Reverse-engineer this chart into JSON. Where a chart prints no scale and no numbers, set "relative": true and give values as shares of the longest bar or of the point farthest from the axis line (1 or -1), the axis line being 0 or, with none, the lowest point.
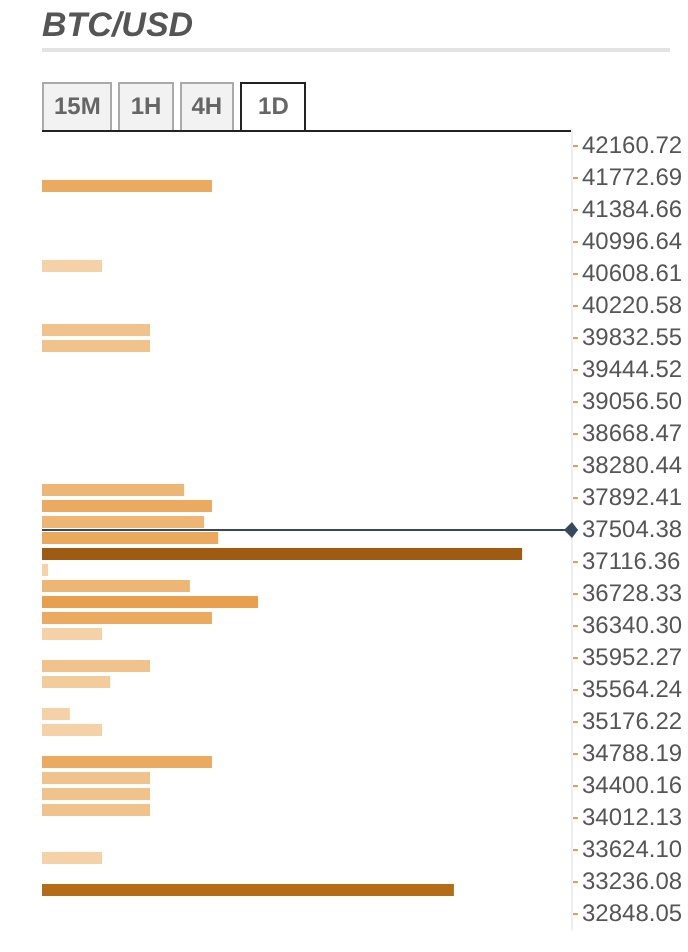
{
  "chart_data": {
    "type": "bar",
    "orientation": "horizontal",
    "relative": true,
    "title": "BTC/USD",
    "annotations": [
      "15M",
      "1H",
      "4H",
      "1D"
    ],
    "x": [
      41676,
      40706,
      39930,
      39736,
      37989,
      37795,
      37601,
      37407,
      37213,
      37019,
      36825,
      36631,
      36437,
      36243,
      35855,
      35661,
      35273,
      35079,
      34691,
      34497,
      34303,
      34109,
      33527,
      33139
    ],
    "values": [
      0.354,
      0.125,
      0.225,
      0.225,
      0.296,
      0.354,
      0.3375,
      0.367,
      1,
      0.0125,
      0.308,
      0.45,
      0.354,
      0.125,
      0.225,
      0.142,
      0.058,
      0.125,
      0.354,
      0.225,
      0.225,
      0.225,
      0.125,
      0.858
    ],
    "colors": [
      "#ebaa5f",
      "#f4d1a6",
      "#f0c38d",
      "#f0c38d",
      "#edb676",
      "#ebaa5f",
      "#eeb573",
      "#eba95e",
      "#a05b13",
      "#f4d1a6",
      "#edb676",
      "#e8a04c",
      "#ebaa5f",
      "#f4d1a6",
      "#f0c38d",
      "#f3cc9c",
      "#f4d1a6",
      "#f4d1a6",
      "#ebaa5f",
      "#f0c38d",
      "#f0c38d",
      "#f0c38d",
      "#f4d1a6",
      "#b56c17"
    ],
    "ylim": [
      32654.03,
      42354.74
    ],
    "yticks": [
      42160.72,
      41772.69,
      41384.66,
      40996.64,
      40608.61,
      40220.58,
      39832.55,
      39444.52,
      {
        "value": 39056.5,
        "label": "39056.50"
      },
      38668.47,
      38280.44,
      37892.41,
      37504.38,
      37116.36,
      36728.33,
      {
        "value": 36340.3,
        "label": "36340.30"
      },
      35952.27,
      35564.24,
      35176.22,
      34788.19,
      34400.16,
      34012.13,
      {
        "value": 33624.1,
        "label": "33624.10"
      },
      33236.08,
      32848.05
    ],
    "tick_labels": "y",
    "legend": false,
    "ref_lines": [
      {
        "axis": "y",
        "value": 37504.38,
        "color": "#34495e"
      }
    ]
  }
}
